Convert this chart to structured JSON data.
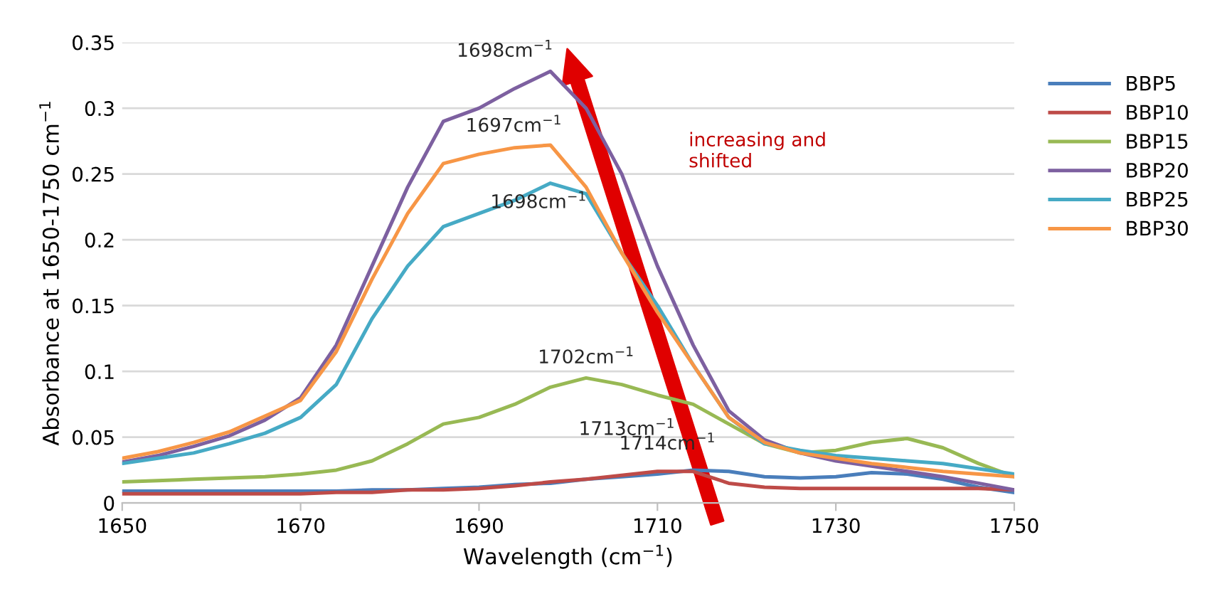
{
  "chart_data": {
    "type": "line",
    "xlabel": "Wavelength (cm$^{−1}$)",
    "ylabel": "Absorbance at 1650-1750 cm$^{−1}$",
    "x": [
      1650,
      1654,
      1658,
      1662,
      1666,
      1670,
      1674,
      1678,
      1682,
      1686,
      1690,
      1694,
      1698,
      1702,
      1706,
      1710,
      1714,
      1718,
      1722,
      1726,
      1730,
      1734,
      1738,
      1742,
      1746,
      1750
    ],
    "series": [
      {
        "name": "BBP5",
        "color": "#4a7ebb",
        "values": [
          0.009,
          0.009,
          0.009,
          0.009,
          0.009,
          0.009,
          0.009,
          0.01,
          0.01,
          0.011,
          0.012,
          0.014,
          0.015,
          0.018,
          0.02,
          0.022,
          0.025,
          0.024,
          0.02,
          0.019,
          0.02,
          0.023,
          0.022,
          0.018,
          0.012,
          0.008
        ]
      },
      {
        "name": "BBP10",
        "color": "#be4b48",
        "values": [
          0.007,
          0.007,
          0.007,
          0.007,
          0.007,
          0.007,
          0.008,
          0.008,
          0.01,
          0.01,
          0.011,
          0.013,
          0.016,
          0.018,
          0.021,
          0.024,
          0.024,
          0.015,
          0.012,
          0.011,
          0.011,
          0.011,
          0.011,
          0.011,
          0.011,
          0.01
        ]
      },
      {
        "name": "BBP15",
        "color": "#98b954",
        "values": [
          0.016,
          0.017,
          0.018,
          0.019,
          0.02,
          0.022,
          0.025,
          0.032,
          0.045,
          0.06,
          0.065,
          0.075,
          0.088,
          0.095,
          0.09,
          0.082,
          0.075,
          0.06,
          0.045,
          0.038,
          0.04,
          0.046,
          0.049,
          0.042,
          0.03,
          0.02
        ]
      },
      {
        "name": "BBP20",
        "color": "#7d60a0",
        "values": [
          0.031,
          0.036,
          0.043,
          0.051,
          0.063,
          0.08,
          0.12,
          0.18,
          0.24,
          0.29,
          0.3,
          0.315,
          0.328,
          0.3,
          0.25,
          0.18,
          0.12,
          0.07,
          0.048,
          0.038,
          0.032,
          0.028,
          0.024,
          0.02,
          0.015,
          0.01
        ]
      },
      {
        "name": "BBP25",
        "color": "#46aac5",
        "values": [
          0.03,
          0.034,
          0.038,
          0.045,
          0.053,
          0.065,
          0.09,
          0.14,
          0.18,
          0.21,
          0.22,
          0.23,
          0.243,
          0.235,
          0.19,
          0.15,
          0.105,
          0.065,
          0.045,
          0.04,
          0.036,
          0.034,
          0.032,
          0.03,
          0.026,
          0.022
        ]
      },
      {
        "name": "BBP30",
        "color": "#f79646",
        "values": [
          0.034,
          0.039,
          0.046,
          0.054,
          0.066,
          0.078,
          0.115,
          0.17,
          0.22,
          0.258,
          0.265,
          0.27,
          0.272,
          0.24,
          0.19,
          0.145,
          0.105,
          0.065,
          0.046,
          0.038,
          0.034,
          0.03,
          0.027,
          0.024,
          0.022,
          0.02
        ]
      }
    ],
    "xlim": [
      1650,
      1750
    ],
    "xticks": [
      1650,
      1670,
      1690,
      1710,
      1730,
      1750
    ],
    "ylim": [
      0,
      0.35
    ],
    "yticks": [
      0,
      0.05,
      0.1,
      0.15,
      0.2,
      0.25,
      0.3,
      0.35
    ],
    "grid": "y",
    "legend": "right",
    "marker": "none",
    "line_style": "solid",
    "annotations": [
      {
        "text": "1698cm$^{−1}$",
        "x": 1698,
        "y": 0.328
      },
      {
        "text": "1697cm$^{−1}$",
        "x": 1697,
        "y": 0.271
      },
      {
        "text": "1698cm$^{−1}$",
        "x": 1698,
        "y": 0.243
      },
      {
        "text": "1702cm$^{−1}$",
        "x": 1702,
        "y": 0.095
      },
      {
        "text": "1713cm$^{−1}$",
        "x": 1713,
        "y": 0.024
      },
      {
        "text": "1714cm$^{−1}$",
        "x": 1714,
        "y": 0.025
      },
      "increasing and\nshifted"
    ]
  }
}
